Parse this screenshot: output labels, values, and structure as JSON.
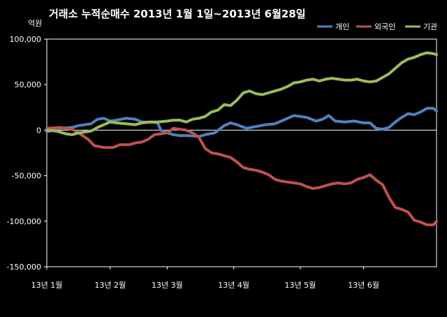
{
  "chart_data": {
    "type": "line",
    "title": "거래소 누적순매수 2013년 1월 1일~2013년 6월28일",
    "unit_label": "억원",
    "ylim": [
      -150000,
      100000
    ],
    "y_ticks": [
      {
        "value": 100000,
        "label": "100,000"
      },
      {
        "value": 50000,
        "label": "50,000"
      },
      {
        "value": 0,
        "label": "0"
      },
      {
        "value": -50000,
        "label": "-50,000"
      },
      {
        "value": -100000,
        "label": "-100,000"
      },
      {
        "value": -150000,
        "label": "-150,000"
      }
    ],
    "grid": false,
    "legend_position": "top-right",
    "x_domain": [
      0,
      123
    ],
    "x_ticks": [
      {
        "value": 0,
        "label": "13년 1월"
      },
      {
        "value": 20,
        "label": "13년 2월"
      },
      {
        "value": 38,
        "label": "13년 3월"
      },
      {
        "value": 59,
        "label": "13년 4월"
      },
      {
        "value": 80,
        "label": "13년 5월"
      },
      {
        "value": 100,
        "label": "13년 6월"
      }
    ],
    "series": [
      {
        "name": "개인",
        "color": "#4f81bd",
        "points": [
          [
            0,
            -2000
          ],
          [
            4,
            2000
          ],
          [
            8,
            3000
          ],
          [
            10,
            5000
          ],
          [
            14,
            7000
          ],
          [
            16,
            12000
          ],
          [
            18,
            13000
          ],
          [
            20,
            10000
          ],
          [
            22,
            11000
          ],
          [
            25,
            13000
          ],
          [
            28,
            12000
          ],
          [
            30,
            9000
          ],
          [
            33,
            9000
          ],
          [
            35,
            8000
          ],
          [
            36,
            0
          ],
          [
            38,
            -3000
          ],
          [
            40,
            -5000
          ],
          [
            42,
            -6000
          ],
          [
            45,
            -6000
          ],
          [
            48,
            -7000
          ],
          [
            50,
            -5000
          ],
          [
            53,
            -3000
          ],
          [
            56,
            5000
          ],
          [
            58,
            8000
          ],
          [
            60,
            6000
          ],
          [
            63,
            2000
          ],
          [
            66,
            4000
          ],
          [
            69,
            6000
          ],
          [
            72,
            7000
          ],
          [
            74,
            10000
          ],
          [
            76,
            13000
          ],
          [
            78,
            16000
          ],
          [
            80,
            15000
          ],
          [
            82,
            14000
          ],
          [
            85,
            10000
          ],
          [
            87,
            12000
          ],
          [
            89,
            16000
          ],
          [
            91,
            10000
          ],
          [
            94,
            9000
          ],
          [
            97,
            10000
          ],
          [
            100,
            8000
          ],
          [
            102,
            8000
          ],
          [
            104,
            2000
          ],
          [
            106,
            1000
          ],
          [
            108,
            3000
          ],
          [
            110,
            9000
          ],
          [
            112,
            14000
          ],
          [
            114,
            18000
          ],
          [
            116,
            17000
          ],
          [
            118,
            20000
          ],
          [
            120,
            24000
          ],
          [
            122,
            24000
          ],
          [
            123,
            21000
          ]
        ]
      },
      {
        "name": "외국인",
        "color": "#c0504d",
        "points": [
          [
            0,
            2000
          ],
          [
            4,
            3000
          ],
          [
            8,
            1000
          ],
          [
            10,
            -3000
          ],
          [
            13,
            -10000
          ],
          [
            15,
            -17000
          ],
          [
            18,
            -19000
          ],
          [
            21,
            -19000
          ],
          [
            23,
            -16000
          ],
          [
            26,
            -16000
          ],
          [
            28,
            -14000
          ],
          [
            30,
            -13000
          ],
          [
            32,
            -10000
          ],
          [
            34,
            -5000
          ],
          [
            36,
            -4000
          ],
          [
            38,
            -3000
          ],
          [
            40,
            2000
          ],
          [
            42,
            1000
          ],
          [
            44,
            0
          ],
          [
            46,
            -3000
          ],
          [
            48,
            -8000
          ],
          [
            50,
            -20000
          ],
          [
            52,
            -25000
          ],
          [
            54,
            -26000
          ],
          [
            56,
            -28000
          ],
          [
            58,
            -30000
          ],
          [
            60,
            -35000
          ],
          [
            62,
            -41000
          ],
          [
            64,
            -43000
          ],
          [
            66,
            -44000
          ],
          [
            68,
            -46000
          ],
          [
            70,
            -49000
          ],
          [
            72,
            -54000
          ],
          [
            74,
            -56000
          ],
          [
            76,
            -57000
          ],
          [
            78,
            -58000
          ],
          [
            80,
            -59000
          ],
          [
            82,
            -62000
          ],
          [
            84,
            -64000
          ],
          [
            86,
            -63000
          ],
          [
            88,
            -61000
          ],
          [
            90,
            -59000
          ],
          [
            92,
            -58000
          ],
          [
            94,
            -59000
          ],
          [
            96,
            -58000
          ],
          [
            98,
            -54000
          ],
          [
            100,
            -52000
          ],
          [
            102,
            -49000
          ],
          [
            104,
            -55000
          ],
          [
            106,
            -60000
          ],
          [
            108,
            -74000
          ],
          [
            110,
            -85000
          ],
          [
            112,
            -87000
          ],
          [
            114,
            -90000
          ],
          [
            116,
            -99000
          ],
          [
            118,
            -101000
          ],
          [
            120,
            -104000
          ],
          [
            122,
            -104000
          ],
          [
            123,
            -100000
          ]
        ]
      },
      {
        "name": "기관",
        "color": "#9bbb59",
        "points": [
          [
            0,
            0
          ],
          [
            3,
            -1000
          ],
          [
            6,
            -4000
          ],
          [
            8,
            -5000
          ],
          [
            10,
            -3000
          ],
          [
            12,
            -2000
          ],
          [
            14,
            -1000
          ],
          [
            16,
            3000
          ],
          [
            18,
            6000
          ],
          [
            20,
            9000
          ],
          [
            22,
            8000
          ],
          [
            25,
            7000
          ],
          [
            28,
            6000
          ],
          [
            30,
            8000
          ],
          [
            33,
            9000
          ],
          [
            35,
            9000
          ],
          [
            38,
            10000
          ],
          [
            40,
            11000
          ],
          [
            42,
            11000
          ],
          [
            44,
            9000
          ],
          [
            46,
            12000
          ],
          [
            48,
            13000
          ],
          [
            50,
            15000
          ],
          [
            52,
            20000
          ],
          [
            54,
            22000
          ],
          [
            56,
            28000
          ],
          [
            58,
            27000
          ],
          [
            60,
            33000
          ],
          [
            62,
            41000
          ],
          [
            64,
            43000
          ],
          [
            66,
            40000
          ],
          [
            68,
            39000
          ],
          [
            70,
            41000
          ],
          [
            72,
            43000
          ],
          [
            74,
            45000
          ],
          [
            76,
            48000
          ],
          [
            78,
            52000
          ],
          [
            80,
            53000
          ],
          [
            82,
            55000
          ],
          [
            84,
            56000
          ],
          [
            86,
            54000
          ],
          [
            88,
            56000
          ],
          [
            90,
            57000
          ],
          [
            92,
            56000
          ],
          [
            94,
            55000
          ],
          [
            96,
            55000
          ],
          [
            98,
            56000
          ],
          [
            100,
            54000
          ],
          [
            102,
            53000
          ],
          [
            104,
            54000
          ],
          [
            106,
            58000
          ],
          [
            108,
            62000
          ],
          [
            110,
            68000
          ],
          [
            112,
            74000
          ],
          [
            114,
            78000
          ],
          [
            116,
            80000
          ],
          [
            118,
            83000
          ],
          [
            120,
            85000
          ],
          [
            122,
            84000
          ],
          [
            123,
            83000
          ]
        ]
      }
    ]
  }
}
